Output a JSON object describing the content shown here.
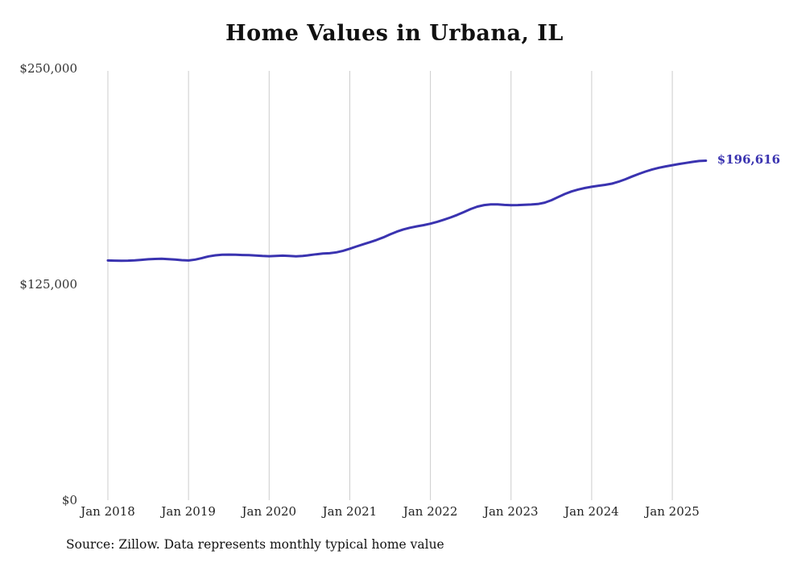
{
  "chart_data": {
    "type": "line",
    "title": "Home Values in Urbana, IL",
    "xlabel": "",
    "ylabel": "",
    "x_interval": "monthly",
    "x_tick_labels": [
      "Jan 2018",
      "Jan 2019",
      "Jan 2020",
      "Jan 2021",
      "Jan 2022",
      "Jan 2023",
      "Jan 2024",
      "Jan 2025"
    ],
    "y_ticks": [
      {
        "value": 0,
        "label": "$0"
      },
      {
        "value": 125000,
        "label": "$125,000"
      },
      {
        "value": 250000,
        "label": "$250,000"
      }
    ],
    "ylim": [
      0,
      250000
    ],
    "grid": "vertical-only",
    "legend": "none",
    "line_color": "#3a33b0",
    "series_name": "Typical home value",
    "values": [
      138800,
      138700,
      138600,
      138700,
      138900,
      139200,
      139500,
      139700,
      139800,
      139600,
      139300,
      139000,
      138800,
      139300,
      140200,
      141200,
      141800,
      142100,
      142200,
      142100,
      142000,
      141900,
      141700,
      141400,
      141300,
      141400,
      141600,
      141400,
      141200,
      141400,
      141900,
      142400,
      142800,
      143000,
      143500,
      144400,
      145600,
      146900,
      148200,
      149400,
      150700,
      152200,
      153900,
      155500,
      156800,
      157800,
      158600,
      159300,
      160100,
      161200,
      162400,
      163700,
      165200,
      166900,
      168600,
      170000,
      170900,
      171300,
      171300,
      171000,
      170800,
      170900,
      171100,
      171200,
      171500,
      172300,
      173700,
      175500,
      177300,
      178800,
      179900,
      180800,
      181500,
      182100,
      182600,
      183300,
      184400,
      185800,
      187400,
      188900,
      190300,
      191500,
      192500,
      193300,
      194000,
      194700,
      195300,
      195900,
      196400,
      196616
    ],
    "end_label": "$196,616",
    "source": "Source: Zillow. Data represents monthly typical home value"
  }
}
